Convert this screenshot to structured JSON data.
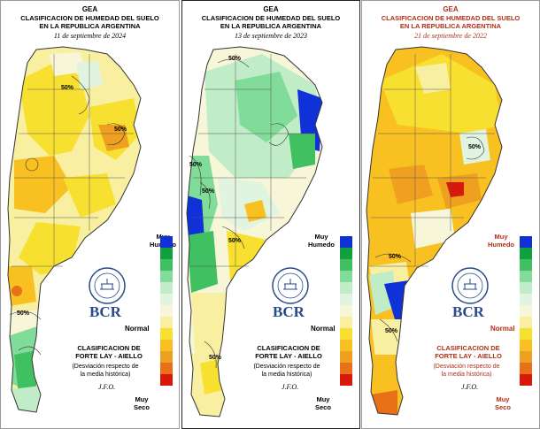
{
  "panels": [
    {
      "title_line1": "GEA",
      "title_line2": "CLASIFICACION DE HUMEDAD DEL SUELO",
      "title_line3": "EN LA REPUBLICA ARGENTINA",
      "date": "11 de septiembre de 2024",
      "contour_labels": [
        "50%",
        "50%",
        "50%"
      ]
    },
    {
      "title_line1": "GEA",
      "title_line2": "CLASIFICACION DE HUMEDAD DEL SUELO",
      "title_line3": "EN LA REPUBLICA ARGENTINA",
      "date": "13 de septiembre de 2023",
      "contour_labels": [
        "50%",
        "50%",
        "50%",
        "50%",
        "50%"
      ]
    },
    {
      "title_line1": "GEA",
      "title_line2": "CLASIFICACION DE HUMEDAD DEL SUELO",
      "title_line3": "EN LA REPUBLICA ARGENTINA",
      "date": "21 de septiembre de 2022",
      "contour_labels": [
        "50%",
        "50%",
        "50%"
      ]
    }
  ],
  "legend": {
    "top_label_line1": "Muy",
    "top_label_line2": "Humedo",
    "middle_label": "Normal",
    "bottom_label_line1": "Muy",
    "bottom_label_line2": "Seco",
    "colors": [
      "#1030d8",
      "#10a040",
      "#40c060",
      "#80dc98",
      "#c0ecc8",
      "#e0f4e0",
      "#f8f6d8",
      "#f8f0a0",
      "#f8e030",
      "#f8c020",
      "#f0a020",
      "#e87018",
      "#d81808"
    ]
  },
  "brand": {
    "text": "BCR",
    "title_line1": "CLASIFICACION DE",
    "title_line2": "FORTE LAY - AIELLO",
    "subtitle_line1": "(Desviación respecto de",
    "subtitle_line2": "la media histórica)",
    "signature": "J.F.O."
  }
}
